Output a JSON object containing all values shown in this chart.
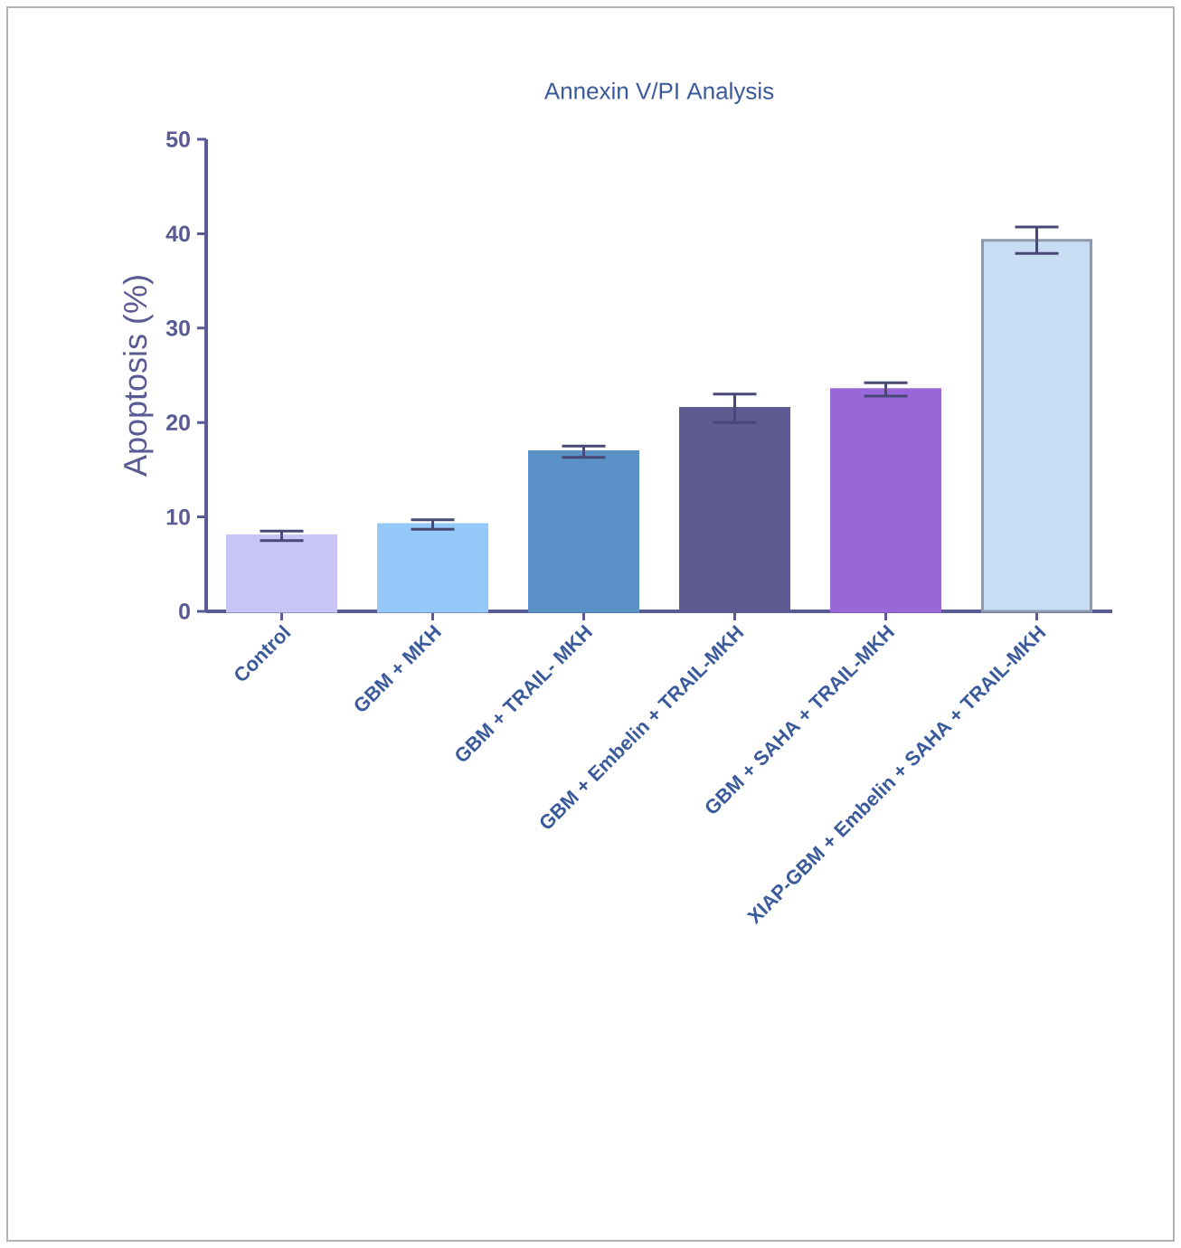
{
  "chart_data": {
    "type": "bar",
    "title": "Annexin V/PI Analysis",
    "ylabel": "Apoptosis (%)",
    "categories": [
      "Control",
      "GBM + MKH",
      "GBM + TRAIL- MKH",
      "GBM + Embelin + TRAIL-MKH",
      "GBM + SAHA + TRAIL-MKH",
      "XIAP-GBM + Embelin + SAHA + TRAIL-MKH"
    ],
    "values": [
      8.0,
      9.2,
      16.9,
      21.5,
      23.5,
      39.3
    ],
    "errors": [
      0.5,
      0.5,
      0.6,
      1.5,
      0.7,
      1.4
    ],
    "colors": [
      "#c8c4f4",
      "#94c8f8",
      "#5a92c8",
      "#5e5a92",
      "#9868d8",
      "#c8dcf4"
    ],
    "ylim": [
      0,
      50
    ],
    "yticks": [
      0,
      10,
      20,
      30,
      40,
      50
    ]
  }
}
